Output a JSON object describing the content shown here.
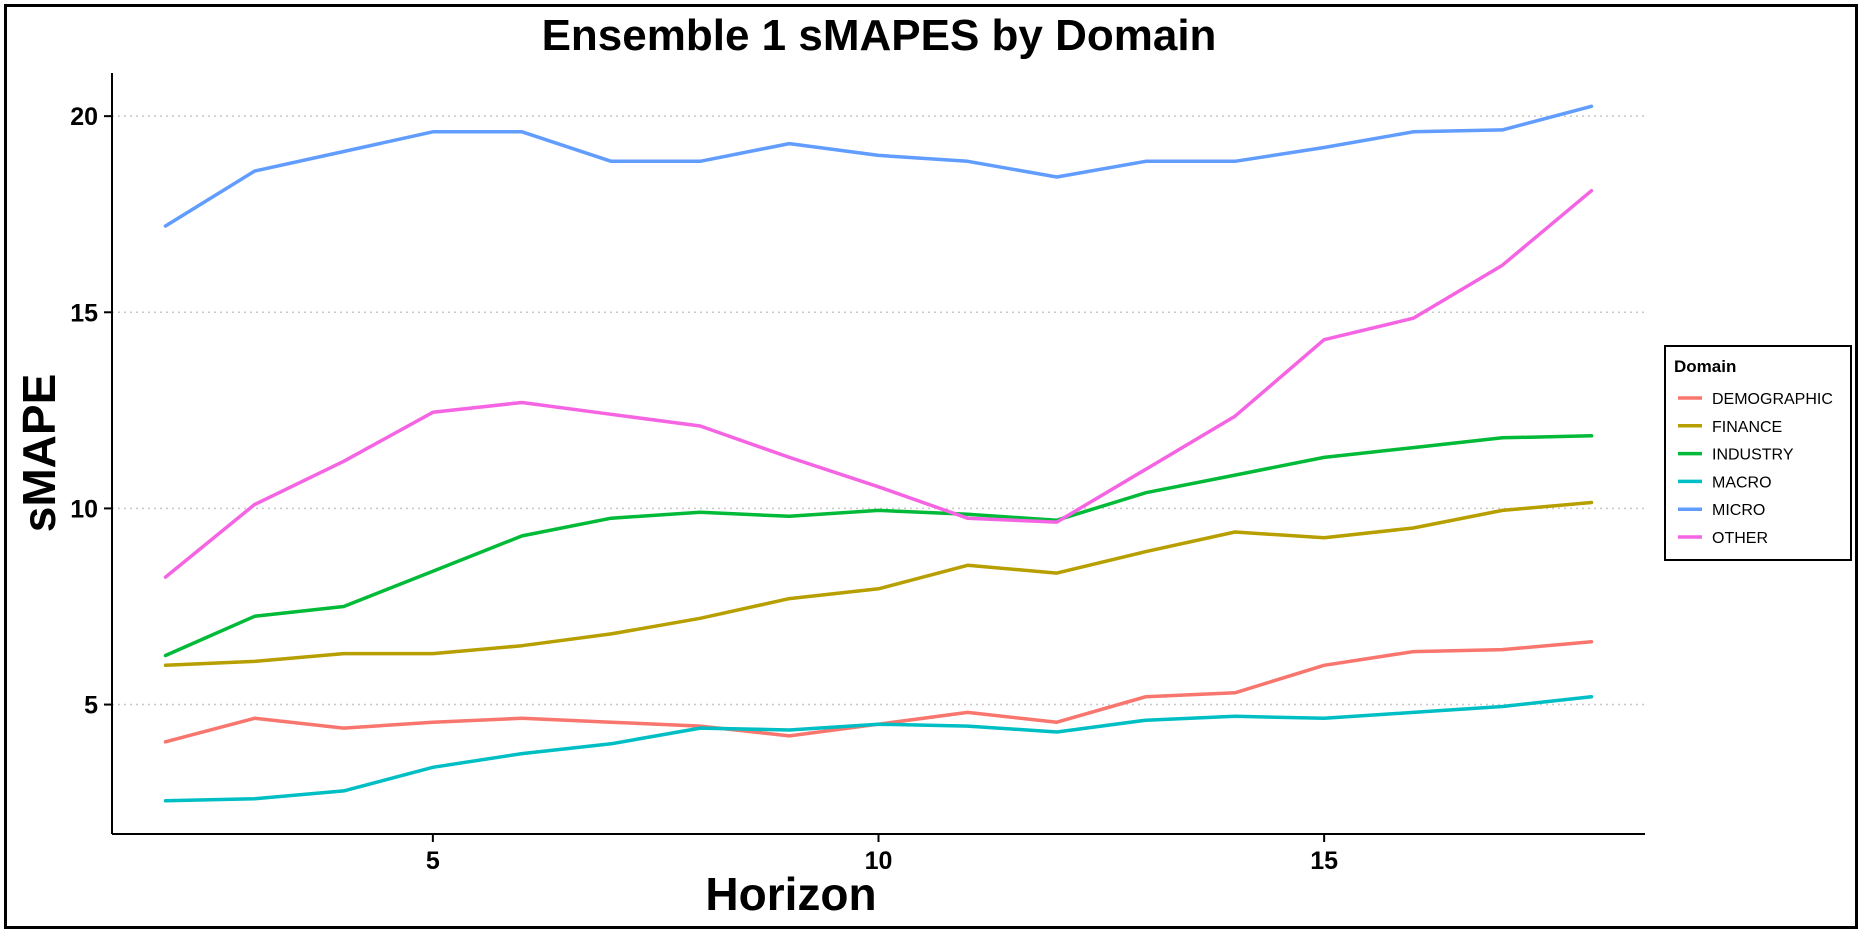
{
  "chart_data": {
    "type": "line",
    "title": "Ensemble 1 sMAPES by Domain",
    "xlabel": "Horizon",
    "ylabel": "sMAPE",
    "xlim": [
      1.4,
      18.6
    ],
    "ylim": [
      1.7,
      21.1
    ],
    "xticks": [
      5,
      10,
      15
    ],
    "yticks": [
      5,
      10,
      15,
      20
    ],
    "grid": "horizontal dotted at major y ticks",
    "legend_position": "right",
    "legend_title": "Domain",
    "x": [
      2,
      3,
      4,
      5,
      6,
      7,
      8,
      9,
      10,
      11,
      12,
      13,
      14,
      15,
      16,
      17,
      18
    ],
    "series": [
      {
        "name": "DEMOGRAPHIC",
        "color": "#F8766D",
        "values": [
          4.05,
          4.65,
          4.4,
          4.55,
          4.65,
          4.55,
          4.45,
          4.2,
          4.5,
          4.8,
          4.55,
          5.2,
          5.3,
          6.0,
          6.35,
          6.4,
          6.6
        ]
      },
      {
        "name": "FINANCE",
        "color": "#B79F00",
        "values": [
          6.0,
          6.1,
          6.3,
          6.3,
          6.5,
          6.8,
          7.2,
          7.7,
          7.95,
          8.55,
          8.35,
          8.9,
          9.4,
          9.25,
          9.5,
          9.95,
          10.15
        ]
      },
      {
        "name": "INDUSTRY",
        "color": "#00BA38",
        "values": [
          6.25,
          7.25,
          7.5,
          8.4,
          9.3,
          9.75,
          9.9,
          9.8,
          9.95,
          9.85,
          9.7,
          10.4,
          10.85,
          11.3,
          11.55,
          11.8,
          11.85
        ]
      },
      {
        "name": "MACRO",
        "color": "#00BFC4",
        "values": [
          2.55,
          2.6,
          2.8,
          3.4,
          3.75,
          4.0,
          4.4,
          4.35,
          4.5,
          4.45,
          4.3,
          4.6,
          4.7,
          4.65,
          4.8,
          4.95,
          5.2
        ]
      },
      {
        "name": "MICRO",
        "color": "#619CFF",
        "values": [
          17.2,
          18.6,
          19.1,
          19.6,
          19.6,
          18.85,
          18.85,
          19.3,
          19.0,
          18.85,
          18.45,
          18.85,
          18.85,
          19.2,
          19.6,
          19.65,
          20.25
        ]
      },
      {
        "name": "OTHER",
        "color": "#F564E3",
        "values": [
          8.25,
          10.1,
          11.2,
          12.45,
          12.7,
          12.4,
          12.1,
          11.3,
          10.55,
          9.75,
          9.65,
          11.0,
          12.35,
          14.3,
          14.85,
          16.2,
          18.1
        ]
      }
    ]
  }
}
